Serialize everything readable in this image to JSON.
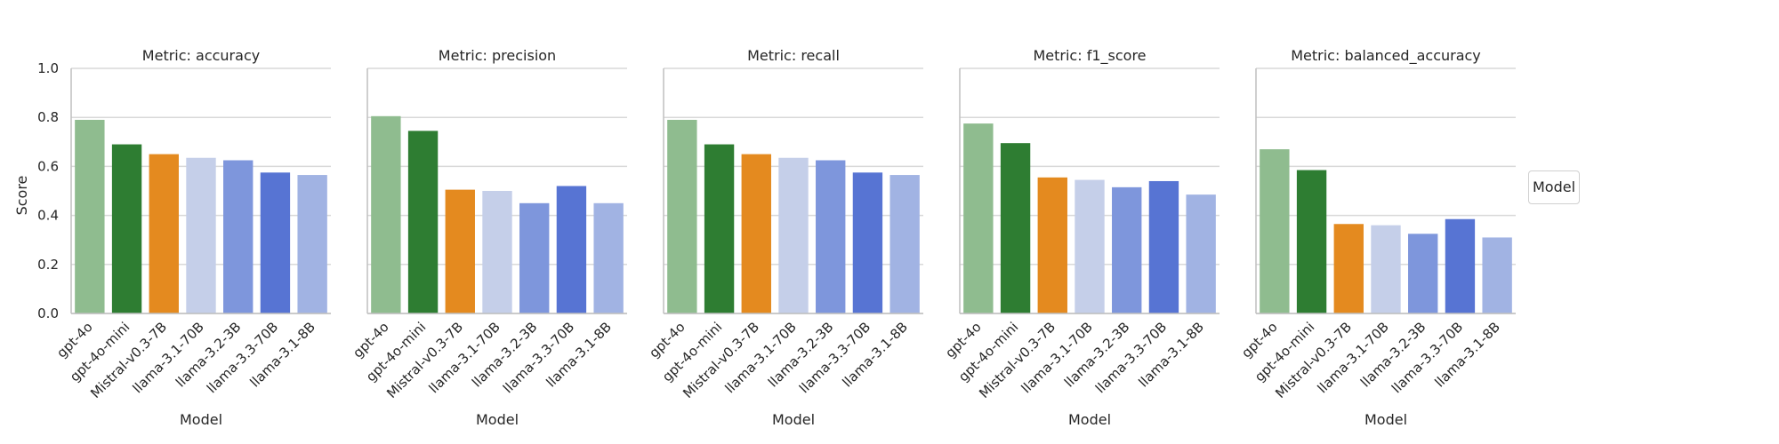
{
  "chart_data": {
    "type": "bar",
    "ylabel": "Score",
    "xlabel": "Model",
    "ylim": [
      0,
      1.0
    ],
    "yticks": [
      "0.0",
      "0.2",
      "0.4",
      "0.6",
      "0.8",
      "1.0"
    ],
    "grid": "horizontal",
    "legend": {
      "title": "Model",
      "placement": "right"
    },
    "categories": [
      "gpt-4o",
      "gpt-4o-mini",
      "Mistral-v0.3-7B",
      "llama-3.1-70B",
      "llama-3.2-3B",
      "llama-3.3-70B",
      "llama-3.1-8B"
    ],
    "colors": [
      "#8fbc8f",
      "#2e7d32",
      "#e48a1f",
      "#c5cfe9",
      "#7e96dc",
      "#5774d3",
      "#a1b3e3"
    ],
    "panels": [
      {
        "title": "Metric: accuracy",
        "values": [
          0.79,
          0.69,
          0.65,
          0.635,
          0.625,
          0.575,
          0.565
        ]
      },
      {
        "title": "Metric: precision",
        "values": [
          0.805,
          0.745,
          0.505,
          0.5,
          0.45,
          0.52,
          0.45
        ]
      },
      {
        "title": "Metric: recall",
        "values": [
          0.79,
          0.69,
          0.65,
          0.635,
          0.625,
          0.575,
          0.565
        ]
      },
      {
        "title": "Metric: f1_score",
        "values": [
          0.775,
          0.695,
          0.555,
          0.545,
          0.515,
          0.54,
          0.485
        ]
      },
      {
        "title": "Metric: balanced_accuracy",
        "values": [
          0.67,
          0.585,
          0.365,
          0.36,
          0.325,
          0.385,
          0.31
        ]
      }
    ]
  }
}
